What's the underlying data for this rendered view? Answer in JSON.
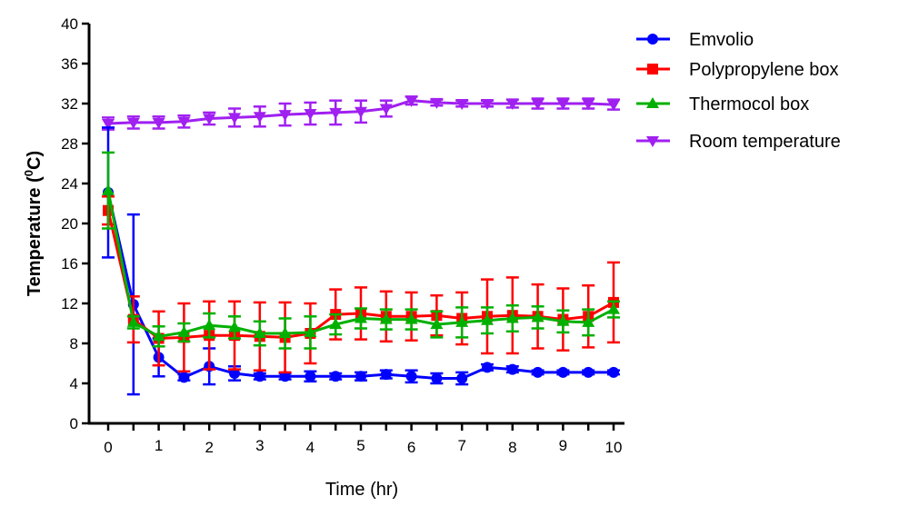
{
  "chart_data": {
    "type": "line",
    "title": "",
    "xlabel": "Time (hr)",
    "ylabel_main": "Temperature (",
    "ylabel_sup": "0",
    "ylabel_end": "C)",
    "xlim": [
      0,
      10
    ],
    "ylim": [
      0,
      40
    ],
    "xticks": [
      0,
      0.5,
      1,
      1.5,
      2,
      2.5,
      3,
      3.5,
      4,
      4.5,
      5,
      5.5,
      6,
      6.5,
      7,
      7.5,
      8,
      8.5,
      9,
      9.5,
      10
    ],
    "xtick_labels": [
      "0",
      "1",
      "2",
      "3",
      "4",
      "5",
      "6",
      "7",
      "8",
      "9",
      "10"
    ],
    "xtick_label_values": [
      0,
      1,
      2,
      3,
      4,
      5,
      6,
      7,
      8,
      9,
      10
    ],
    "yticks": [
      0,
      4,
      8,
      12,
      16,
      20,
      24,
      28,
      32,
      36,
      40
    ],
    "ytick_labels": [
      "0",
      "4",
      "8",
      "12",
      "16",
      "20",
      "24",
      "28",
      "32",
      "36",
      "40"
    ],
    "grid": false,
    "legend_position": "top-right",
    "x": [
      0,
      0.5,
      1,
      1.5,
      2,
      2.5,
      3,
      3.5,
      4,
      4.5,
      5,
      5.5,
      6,
      6.5,
      7,
      7.5,
      8,
      8.5,
      9,
      9.5,
      10
    ],
    "series": [
      {
        "name": "Emvolio",
        "color": "#0000ff",
        "marker": "circle",
        "values": [
          23.1,
          11.9,
          6.6,
          4.6,
          5.7,
          5.0,
          4.7,
          4.7,
          4.7,
          4.7,
          4.7,
          4.9,
          4.7,
          4.5,
          4.5,
          5.6,
          5.4,
          5.1,
          5.1,
          5.1,
          5.1
        ],
        "errors": [
          6.5,
          9.0,
          1.9,
          0.3,
          1.8,
          0.7,
          0.3,
          0.3,
          0.5,
          0.3,
          0.4,
          0.4,
          0.6,
          0.5,
          0.6,
          0.3,
          0.3,
          0.2,
          0.2,
          0.2,
          0.2
        ]
      },
      {
        "name": "Polypropylene box",
        "color": "#ff0000",
        "marker": "square",
        "values": [
          21.3,
          10.4,
          8.5,
          8.6,
          8.8,
          8.8,
          8.7,
          8.6,
          9.0,
          10.9,
          11.0,
          10.7,
          10.7,
          10.8,
          10.5,
          10.7,
          10.8,
          10.7,
          10.4,
          10.7,
          12.1
        ],
        "errors": [
          1.4,
          2.3,
          2.7,
          3.4,
          3.4,
          3.4,
          3.4,
          3.5,
          3.0,
          2.5,
          2.6,
          2.5,
          2.4,
          2.0,
          2.6,
          3.7,
          3.8,
          3.2,
          3.1,
          3.1,
          4.0
        ]
      },
      {
        "name": "Thermocol box",
        "color": "#00b000",
        "marker": "triangle-up",
        "values": [
          23.3,
          10.1,
          8.7,
          9.1,
          9.8,
          9.6,
          9.0,
          9.0,
          9.1,
          9.9,
          10.5,
          10.4,
          10.4,
          9.9,
          10.1,
          10.3,
          10.5,
          10.6,
          10.2,
          10.1,
          11.4
        ],
        "errors": [
          3.8,
          0.6,
          1.0,
          0.9,
          1.2,
          1.1,
          1.2,
          1.5,
          1.6,
          1.0,
          1.0,
          1.0,
          1.0,
          1.3,
          1.5,
          1.3,
          1.3,
          1.1,
          1.1,
          1.3,
          0.8
        ]
      },
      {
        "name": "Room temperature",
        "color": "#a020f0",
        "marker": "triangle-down",
        "values": [
          30.0,
          30.1,
          30.1,
          30.2,
          30.5,
          30.6,
          30.7,
          30.9,
          31.0,
          31.1,
          31.2,
          31.5,
          32.3,
          32.1,
          32.0,
          32.0,
          32.0,
          32.0,
          32.0,
          32.0,
          31.9
        ],
        "errors": [
          0.6,
          0.6,
          0.6,
          0.6,
          0.6,
          0.9,
          1.0,
          1.1,
          1.1,
          1.2,
          1.1,
          0.8,
          0.4,
          0.3,
          0.3,
          0.3,
          0.4,
          0.5,
          0.5,
          0.5,
          0.5
        ]
      }
    ]
  }
}
